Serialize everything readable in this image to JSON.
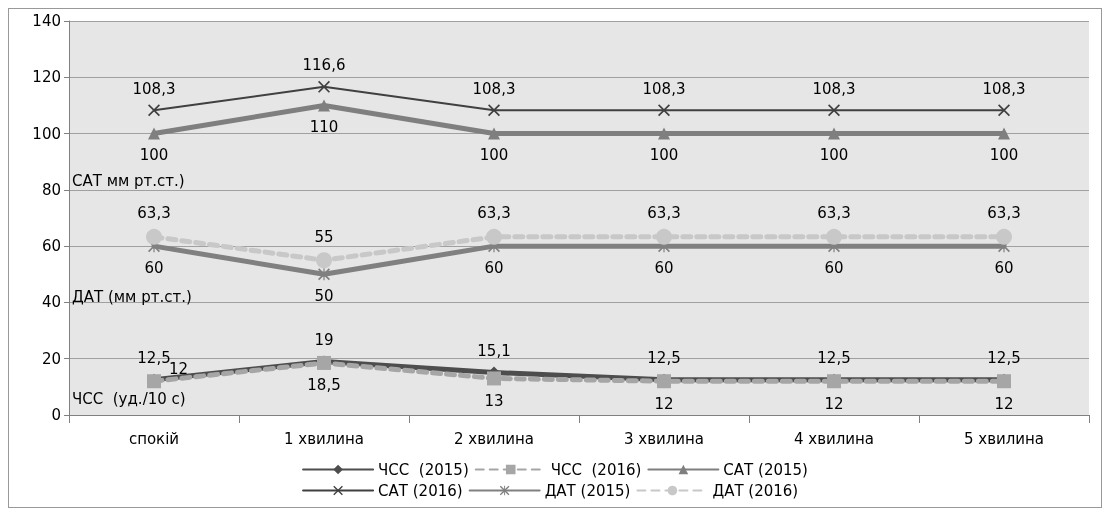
{
  "chart_data": {
    "type": "line",
    "categories": [
      "спокій",
      "1 хвилина",
      "2 хвилина",
      "3 хвилина",
      "4 хвилина",
      "5 хвилина"
    ],
    "ylim": [
      0,
      140
    ],
    "yticks": [
      0,
      20,
      40,
      60,
      80,
      100,
      120,
      140
    ],
    "grid": "y",
    "legend": "bottom",
    "data_labels": true,
    "annotations": [
      "САТ мм рт.ст.)",
      "ДАТ (мм рт.ст.)",
      "ЧСС  (уд./10 с)"
    ],
    "series": [
      {
        "name": "ЧСС  (2015)",
        "color": "#4d4d4d",
        "marker": "diamond",
        "line_style": "solid",
        "values": [
          12.5,
          19,
          15.1,
          12.5,
          12.5,
          12.5
        ],
        "value_labels": [
          "12,5",
          "19",
          "15,1",
          "12,5",
          "12,5",
          "12,5"
        ]
      },
      {
        "name": "ЧСС  (2016)",
        "color": "#a6a6a6",
        "marker": "square",
        "line_style": "dashed",
        "values": [
          12,
          18.5,
          13,
          12,
          12,
          12
        ],
        "value_labels": [
          "12",
          "18,5",
          "13",
          "12",
          "12",
          "12"
        ]
      },
      {
        "name": "САТ (2015)",
        "color": "#7f7f7f",
        "marker": "triangle",
        "line_style": "solid",
        "values": [
          100,
          110,
          100,
          100,
          100,
          100
        ],
        "value_labels": [
          "100",
          "110",
          "100",
          "100",
          "100",
          "100"
        ]
      },
      {
        "name": "САТ (2016)",
        "color": "#404040",
        "marker": "cross",
        "line_style": "solid",
        "values": [
          108.3,
          116.6,
          108.3,
          108.3,
          108.3,
          108.3
        ],
        "value_labels": [
          "108,3",
          "116,6",
          "108,3",
          "108,3",
          "108,3",
          "108,3"
        ]
      },
      {
        "name": "ДАТ (2015)",
        "color": "#808080",
        "marker": "star",
        "line_style": "solid",
        "values": [
          60,
          50,
          60,
          60,
          60,
          60
        ],
        "value_labels": [
          "60",
          "50",
          "60",
          "60",
          "60",
          "60"
        ]
      },
      {
        "name": "ДАТ (2016)",
        "color": "#c8c8c8",
        "marker": "circle",
        "line_style": "dashed",
        "values": [
          63.3,
          55,
          63.3,
          63.3,
          63.3,
          63.3
        ],
        "value_labels": [
          "63,3",
          "55",
          "63,3",
          "63,3",
          "63,3",
          "63,3"
        ]
      }
    ]
  }
}
